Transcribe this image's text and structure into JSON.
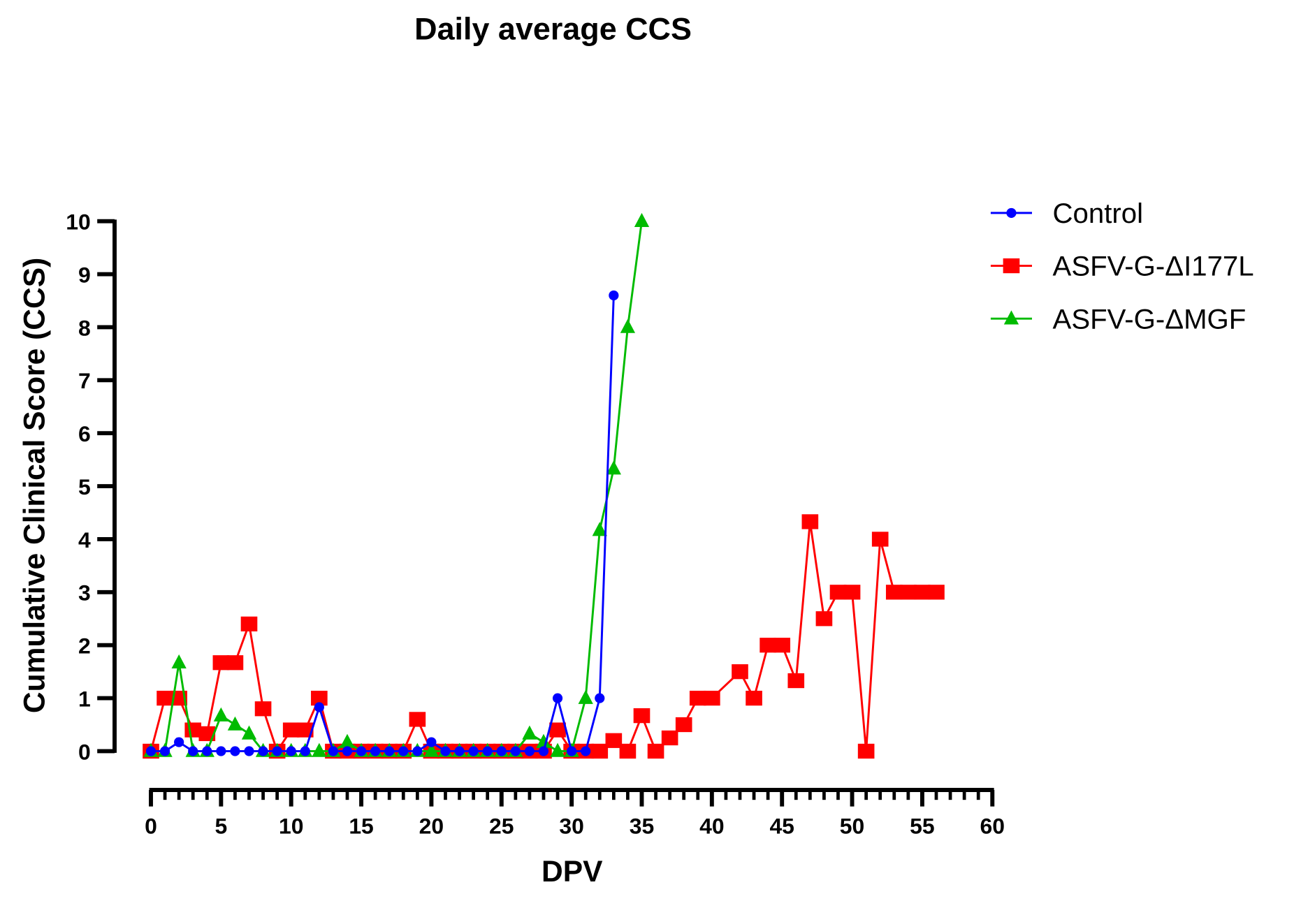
{
  "chart_data": {
    "type": "line",
    "title": "Daily average CCS",
    "xlabel": "DPV",
    "ylabel": "Cumulative Clinical  Score (CCS)",
    "xlim": [
      0,
      60
    ],
    "ylim": [
      0,
      10
    ],
    "x_ticks": [
      0,
      5,
      10,
      15,
      20,
      25,
      30,
      35,
      40,
      45,
      50,
      55,
      60
    ],
    "x_minor_step": 1,
    "y_ticks": [
      0,
      1,
      2,
      3,
      4,
      5,
      6,
      7,
      8,
      9,
      10
    ],
    "grid": false,
    "legend_position": "top-right",
    "series": [
      {
        "name": "ASFV-G-ΔI177L",
        "color": "#ff0000",
        "marker": "square",
        "points": [
          [
            0,
            0
          ],
          [
            1,
            1
          ],
          [
            2,
            1
          ],
          [
            3,
            0.4
          ],
          [
            4,
            0.33
          ],
          [
            5,
            1.67
          ],
          [
            6,
            1.67
          ],
          [
            7,
            2.4
          ],
          [
            8,
            0.8
          ],
          [
            9,
            0
          ],
          [
            10,
            0.4
          ],
          [
            11,
            0.4
          ],
          [
            12,
            1
          ],
          [
            13,
            0
          ],
          [
            14,
            0
          ],
          [
            15,
            0
          ],
          [
            16,
            0
          ],
          [
            17,
            0
          ],
          [
            18,
            0
          ],
          [
            19,
            0.6
          ],
          [
            20,
            0
          ],
          [
            21,
            0
          ],
          [
            22,
            0
          ],
          [
            23,
            0
          ],
          [
            24,
            0
          ],
          [
            25,
            0
          ],
          [
            26,
            0
          ],
          [
            27,
            0
          ],
          [
            28,
            0
          ],
          [
            29,
            0.4
          ],
          [
            30,
            0
          ],
          [
            31,
            0
          ],
          [
            32,
            0
          ],
          [
            33,
            0.2
          ],
          [
            34,
            0
          ],
          [
            35,
            0.67
          ],
          [
            36,
            0
          ],
          [
            37,
            0.25
          ],
          [
            38,
            0.5
          ],
          [
            39,
            1
          ],
          [
            40,
            1
          ],
          [
            42,
            1.5
          ],
          [
            43,
            1
          ],
          [
            44,
            2
          ],
          [
            45,
            2
          ],
          [
            46,
            1.33
          ],
          [
            47,
            4.33
          ],
          [
            48,
            2.5
          ],
          [
            49,
            3
          ],
          [
            50,
            3
          ],
          [
            51,
            0
          ],
          [
            52,
            4
          ],
          [
            53,
            3
          ],
          [
            54,
            3
          ],
          [
            55,
            3
          ],
          [
            56,
            3
          ]
        ]
      },
      {
        "name": "ASFV-G-ΔMGF",
        "color": "#00bb00",
        "marker": "triangle",
        "points": [
          [
            0,
            0
          ],
          [
            1,
            0
          ],
          [
            2,
            1.67
          ],
          [
            3,
            0
          ],
          [
            4,
            0
          ],
          [
            5,
            0.67
          ],
          [
            6,
            0.5
          ],
          [
            7,
            0.33
          ],
          [
            8,
            0
          ],
          [
            9,
            0
          ],
          [
            10,
            0
          ],
          [
            11,
            0
          ],
          [
            12,
            0
          ],
          [
            13,
            0
          ],
          [
            14,
            0.17
          ],
          [
            15,
            0
          ],
          [
            16,
            0
          ],
          [
            17,
            0
          ],
          [
            18,
            0
          ],
          [
            19,
            0
          ],
          [
            20,
            0
          ],
          [
            21,
            0
          ],
          [
            22,
            0
          ],
          [
            23,
            0
          ],
          [
            24,
            0
          ],
          [
            25,
            0
          ],
          [
            26,
            0
          ],
          [
            27,
            0.33
          ],
          [
            28,
            0.17
          ],
          [
            29,
            0
          ],
          [
            30,
            0
          ],
          [
            31,
            1
          ],
          [
            32,
            4.17
          ],
          [
            33,
            5.33
          ],
          [
            34,
            8
          ],
          [
            35,
            10
          ]
        ]
      },
      {
        "name": "Control",
        "color": "#0000ff",
        "marker": "circle",
        "points": [
          [
            0,
            0
          ],
          [
            1,
            0
          ],
          [
            2,
            0.17
          ],
          [
            3,
            0
          ],
          [
            4,
            0
          ],
          [
            5,
            0
          ],
          [
            6,
            0
          ],
          [
            7,
            0
          ],
          [
            8,
            0
          ],
          [
            9,
            0
          ],
          [
            10,
            0
          ],
          [
            11,
            0
          ],
          [
            12,
            0.83
          ],
          [
            13,
            0
          ],
          [
            14,
            0
          ],
          [
            15,
            0
          ],
          [
            16,
            0
          ],
          [
            17,
            0
          ],
          [
            18,
            0
          ],
          [
            19,
            0
          ],
          [
            20,
            0.17
          ],
          [
            21,
            0
          ],
          [
            22,
            0
          ],
          [
            23,
            0
          ],
          [
            24,
            0
          ],
          [
            25,
            0
          ],
          [
            26,
            0
          ],
          [
            27,
            0
          ],
          [
            28,
            0
          ],
          [
            29,
            1
          ],
          [
            30,
            0
          ],
          [
            31,
            0
          ],
          [
            32,
            1
          ],
          [
            33,
            8.6
          ]
        ]
      }
    ],
    "legend_order": [
      "Control",
      "ASFV-G-ΔI177L",
      "ASFV-G-ΔMGF"
    ]
  }
}
